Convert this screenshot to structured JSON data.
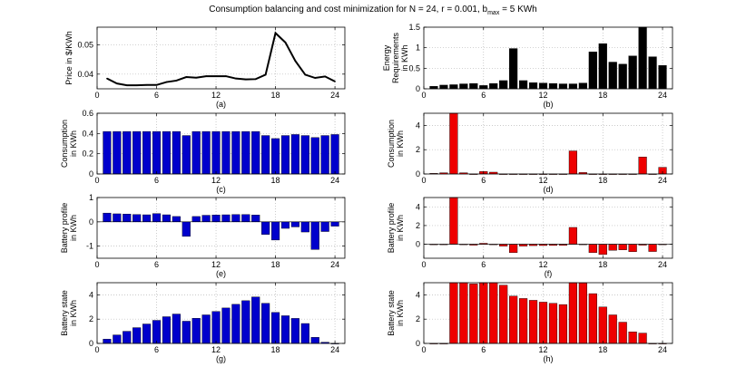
{
  "figure": {
    "title_main": "Consumption balancing and cost minimization for N = 24, r = 0.001, b",
    "title_sub": "max",
    "title_tail": " = 5 KWh"
  },
  "chart_data": [
    {
      "id": "a",
      "type": "line",
      "caption": "(a)",
      "ylabel": [
        "Price in $/KWh"
      ],
      "x": [
        1,
        2,
        3,
        4,
        5,
        6,
        7,
        8,
        9,
        10,
        11,
        12,
        13,
        14,
        15,
        16,
        17,
        18,
        19,
        20,
        21,
        22,
        23,
        24
      ],
      "values": [
        0.0385,
        0.0368,
        0.0362,
        0.0362,
        0.0363,
        0.0363,
        0.0373,
        0.0378,
        0.039,
        0.0388,
        0.0393,
        0.0393,
        0.0393,
        0.0385,
        0.0382,
        0.0383,
        0.0398,
        0.054,
        0.0508,
        0.0445,
        0.0398,
        0.0387,
        0.0392,
        0.0375
      ],
      "xlim": [
        0,
        25
      ],
      "ylim": [
        0.035,
        0.056
      ],
      "xticks": [
        0,
        6,
        12,
        18,
        24
      ],
      "xtick_labels": [
        "0",
        "6",
        "12",
        "18",
        "24"
      ],
      "yticks": [
        0.04,
        0.05
      ],
      "ytick_labels": [
        "0.04",
        "0.05"
      ],
      "color": "#000000",
      "grid": true
    },
    {
      "id": "b",
      "type": "bar",
      "caption": "(b)",
      "ylabel": [
        "Energy",
        "Requirements",
        "in KWh"
      ],
      "x": [
        1,
        2,
        3,
        4,
        5,
        6,
        7,
        8,
        9,
        10,
        11,
        12,
        13,
        14,
        15,
        16,
        17,
        18,
        19,
        20,
        21,
        22,
        23,
        24
      ],
      "values": [
        0.06,
        0.09,
        0.1,
        0.12,
        0.13,
        0.08,
        0.13,
        0.2,
        0.98,
        0.2,
        0.15,
        0.14,
        0.13,
        0.12,
        0.12,
        0.14,
        0.9,
        1.1,
        0.65,
        0.6,
        0.8,
        1.5,
        0.78,
        0.57
      ],
      "xlim": [
        0,
        25
      ],
      "ylim": [
        0,
        1.5
      ],
      "xticks": [
        0,
        6,
        12,
        18,
        24
      ],
      "xtick_labels": [
        "0",
        "6",
        "12",
        "18",
        "24"
      ],
      "yticks": [
        0,
        0.5,
        1,
        1.5
      ],
      "ytick_labels": [
        "0",
        "0.5",
        "1",
        "1.5"
      ],
      "color": "#000000",
      "grid": true
    },
    {
      "id": "c",
      "type": "bar",
      "caption": "(c)",
      "ylabel": [
        "Consumption",
        "in KWh"
      ],
      "x": [
        1,
        2,
        3,
        4,
        5,
        6,
        7,
        8,
        9,
        10,
        11,
        12,
        13,
        14,
        15,
        16,
        17,
        18,
        19,
        20,
        21,
        22,
        23,
        24
      ],
      "values": [
        0.42,
        0.42,
        0.42,
        0.42,
        0.42,
        0.42,
        0.42,
        0.42,
        0.38,
        0.42,
        0.42,
        0.42,
        0.42,
        0.42,
        0.42,
        0.42,
        0.38,
        0.35,
        0.38,
        0.39,
        0.38,
        0.36,
        0.38,
        0.39
      ],
      "xlim": [
        0,
        25
      ],
      "ylim": [
        0,
        0.6
      ],
      "xticks": [
        0,
        6,
        12,
        18,
        24
      ],
      "xtick_labels": [
        "0",
        "6",
        "12",
        "18",
        "24"
      ],
      "yticks": [
        0,
        0.2,
        0.4,
        0.6
      ],
      "ytick_labels": [
        "0",
        "0.2",
        "0.4",
        "0.6"
      ],
      "color": "#0000cc",
      "grid": true
    },
    {
      "id": "d",
      "type": "bar",
      "caption": "(d)",
      "ylabel": [
        "Consumption",
        "in KWh"
      ],
      "x": [
        1,
        2,
        3,
        4,
        5,
        6,
        7,
        8,
        9,
        10,
        11,
        12,
        13,
        14,
        15,
        16,
        17,
        18,
        19,
        20,
        21,
        22,
        23,
        24
      ],
      "values": [
        0.05,
        0.1,
        5.0,
        0.1,
        0.0,
        0.2,
        0.15,
        0.0,
        0.0,
        0.0,
        0.0,
        0.0,
        0.0,
        0.0,
        1.9,
        0.12,
        0.0,
        0.0,
        0.0,
        0.0,
        0.0,
        1.4,
        0.0,
        0.55
      ],
      "xlim": [
        0,
        25
      ],
      "ylim": [
        0,
        5
      ],
      "xticks": [
        0,
        6,
        12,
        18,
        24
      ],
      "xtick_labels": [
        "0",
        "6",
        "12",
        "18",
        "24"
      ],
      "yticks": [
        0,
        2,
        4
      ],
      "ytick_labels": [
        "0",
        "2",
        "4"
      ],
      "color": "#ee0000",
      "grid": true
    },
    {
      "id": "e",
      "type": "bar",
      "caption": "(e)",
      "ylabel": [
        "Battery profile",
        "in KWh"
      ],
      "x": [
        1,
        2,
        3,
        4,
        5,
        6,
        7,
        8,
        9,
        10,
        11,
        12,
        13,
        14,
        15,
        16,
        17,
        18,
        19,
        20,
        21,
        22,
        23,
        24
      ],
      "values": [
        0.36,
        0.33,
        0.32,
        0.3,
        0.29,
        0.34,
        0.29,
        0.22,
        -0.6,
        0.22,
        0.27,
        0.28,
        0.29,
        0.3,
        0.3,
        0.28,
        -0.52,
        -0.75,
        -0.27,
        -0.21,
        -0.42,
        -1.14,
        -0.4,
        -0.18
      ],
      "xlim": [
        0,
        25
      ],
      "ylim": [
        -1.5,
        1
      ],
      "xticks": [
        0,
        6,
        12,
        18,
        24
      ],
      "xtick_labels": [
        "0",
        "6",
        "12",
        "18",
        "24"
      ],
      "yticks": [
        -1,
        0,
        1
      ],
      "ytick_labels": [
        "-1",
        "0",
        "1"
      ],
      "color": "#0000cc",
      "grid": true
    },
    {
      "id": "f",
      "type": "bar",
      "caption": "(f)",
      "ylabel": [
        "Battery profile",
        "in KWh"
      ],
      "x": [
        1,
        2,
        3,
        4,
        5,
        6,
        7,
        8,
        9,
        10,
        11,
        12,
        13,
        14,
        15,
        16,
        17,
        18,
        19,
        20,
        21,
        22,
        23,
        24
      ],
      "values": [
        0.0,
        0.0,
        5.0,
        0.0,
        -0.1,
        0.1,
        0.0,
        -0.2,
        -0.9,
        -0.2,
        -0.15,
        -0.14,
        -0.13,
        -0.12,
        1.8,
        -0.02,
        -0.9,
        -1.1,
        -0.65,
        -0.6,
        -0.8,
        -0.1,
        -0.78,
        -0.02
      ],
      "xlim": [
        0,
        25
      ],
      "ylim": [
        -1.5,
        5
      ],
      "xticks": [
        0,
        6,
        12,
        18,
        24
      ],
      "xtick_labels": [
        "0",
        "6",
        "12",
        "18",
        "24"
      ],
      "yticks": [
        0,
        2,
        4
      ],
      "ytick_labels": [
        "0",
        "2",
        "4"
      ],
      "color": "#ee0000",
      "grid": true
    },
    {
      "id": "g",
      "type": "bar",
      "caption": "(g)",
      "ylabel": [
        "Battery state",
        "in KWh"
      ],
      "x": [
        1,
        2,
        3,
        4,
        5,
        6,
        7,
        8,
        9,
        10,
        11,
        12,
        13,
        14,
        15,
        16,
        17,
        18,
        19,
        20,
        21,
        22,
        23,
        24
      ],
      "values": [
        0.35,
        0.7,
        1.0,
        1.3,
        1.6,
        1.9,
        2.2,
        2.42,
        1.83,
        2.07,
        2.35,
        2.63,
        2.92,
        3.22,
        3.52,
        3.83,
        3.3,
        2.55,
        2.28,
        2.06,
        1.64,
        0.5,
        0.1,
        0.0
      ],
      "xlim": [
        0,
        25
      ],
      "ylim": [
        0,
        5
      ],
      "xticks": [
        0,
        6,
        12,
        18,
        24
      ],
      "xtick_labels": [
        "0",
        "6",
        "12",
        "18",
        "24"
      ],
      "yticks": [
        0,
        2,
        4
      ],
      "ytick_labels": [
        "0",
        "2",
        "4"
      ],
      "color": "#0000cc",
      "grid": true
    },
    {
      "id": "h",
      "type": "bar",
      "caption": "(h)",
      "ylabel": [
        "Battery state",
        "in KWh"
      ],
      "x": [
        1,
        2,
        3,
        4,
        5,
        6,
        7,
        8,
        9,
        10,
        11,
        12,
        13,
        14,
        15,
        16,
        17,
        18,
        19,
        20,
        21,
        22,
        23,
        24
      ],
      "values": [
        0.0,
        0.0,
        5.0,
        5.0,
        4.9,
        5.0,
        5.0,
        4.8,
        3.9,
        3.7,
        3.55,
        3.4,
        3.3,
        3.2,
        5.0,
        4.98,
        4.1,
        3.0,
        2.35,
        1.75,
        0.95,
        0.85,
        0.0,
        0.0
      ],
      "xlim": [
        0,
        25
      ],
      "ylim": [
        0,
        5
      ],
      "xticks": [
        0,
        6,
        12,
        18,
        24
      ],
      "xtick_labels": [
        "0",
        "6",
        "12",
        "18",
        "24"
      ],
      "yticks": [
        0,
        2,
        4
      ],
      "ytick_labels": [
        "0",
        "2",
        "4"
      ],
      "color": "#ee0000",
      "grid": true
    }
  ]
}
